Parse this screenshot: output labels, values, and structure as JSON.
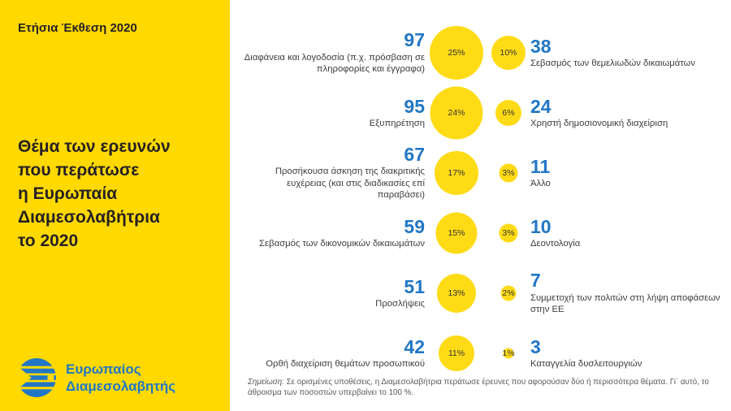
{
  "panel": {
    "report_title": "Ετήσια Έκθεση 2020",
    "main_title_lines": [
      "Θέμα των ερευνών",
      "που περάτωσε",
      "η Ευρωπαία",
      "Διαμεσολαβήτρια",
      "το 2020"
    ],
    "logo_text_lines": [
      "Ευρωπαίος",
      "Διαμεσολαβητής"
    ]
  },
  "chart_data": {
    "type": "bubble",
    "title": "Θέμα των ερευνών που περάτωσε η Ευρωπαία Διαμεσολαβήτρια το 2020",
    "note_prefix": "Σημείωση:",
    "note_body": "Σε ορισμένες υποθέσεις, η Διαμεσολαβήτρια περάτωσε έρευνες που αφορούσαν δύο ή περισσότερα θέματα. Γι΄ αυτό, το άθροισμα των ποσοστών υπερβαίνει το 100 %.",
    "rows": [
      {
        "left": {
          "value": "97",
          "label": "Διαφάνεια και λογοδοσία (π.χ. πρόσβαση σε πληροφορίες και έγγραφα)",
          "percent": 25,
          "percent_label": "25%"
        },
        "right": {
          "value": "38",
          "label": "Σεβασμός των θεμελιωδών δικαιωμάτων",
          "percent": 10,
          "percent_label": "10%"
        }
      },
      {
        "left": {
          "value": "95",
          "label": "Εξυπηρέτηση",
          "percent": 24,
          "percent_label": "24%"
        },
        "right": {
          "value": "24",
          "label": "Χρηστή δημοσιονομική διαχείριση",
          "percent": 6,
          "percent_label": "6%"
        }
      },
      {
        "left": {
          "value": "67",
          "label": "Προσήκουσα άσκηση της διακριτικής ευχέρειας (και στις διαδικασίες επί παραβάσει)",
          "percent": 17,
          "percent_label": "17%"
        },
        "right": {
          "value": "11",
          "label": "Άλλο",
          "percent": 3,
          "percent_label": "3%"
        }
      },
      {
        "left": {
          "value": "59",
          "label": "Σεβασμός των δικονομικών δικαιωμάτων",
          "percent": 15,
          "percent_label": "15%"
        },
        "right": {
          "value": "10",
          "label": "Δεοντολογία",
          "percent": 3,
          "percent_label": "3%"
        }
      },
      {
        "left": {
          "value": "51",
          "label": "Προσλήψεις",
          "percent": 13,
          "percent_label": "13%"
        },
        "right": {
          "value": "7",
          "label": "Συμμετοχή των πολιτών στη λήψη αποφάσεων στην ΕΕ",
          "percent": 2,
          "percent_label": "2%"
        }
      },
      {
        "left": {
          "value": "42",
          "label": "Ορθή διαχείριση θεμάτων προσωπικού",
          "percent": 11,
          "percent_label": "11%"
        },
        "right": {
          "value": "3",
          "label": "Καταγγελία δυσλειτουργιών",
          "percent": 1,
          "percent_label": "1%"
        }
      }
    ]
  },
  "colors": {
    "panel_yellow": "#FFD900",
    "bubble_yellow": "#FFDB16",
    "accent_blue": "#2177C5",
    "text_dark": "#262123",
    "label_gray": "#3D3D3D",
    "note_gray": "#595959"
  }
}
